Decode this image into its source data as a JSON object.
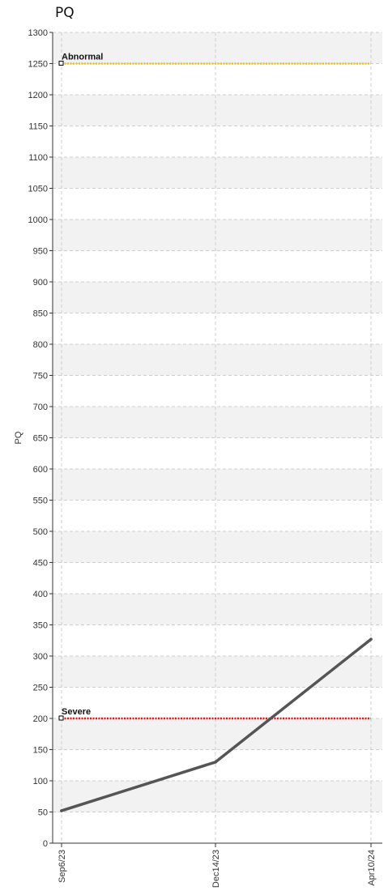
{
  "chart_data": {
    "type": "line",
    "title": "PQ",
    "ylabel": "PQ",
    "xlabel": "",
    "ylim": [
      0,
      1300
    ],
    "y_ticks": [
      0,
      50,
      100,
      150,
      200,
      250,
      300,
      350,
      400,
      450,
      500,
      550,
      600,
      650,
      700,
      750,
      800,
      850,
      900,
      950,
      1000,
      1050,
      1100,
      1150,
      1200,
      1250,
      1300
    ],
    "x": [
      "2023-09-06",
      "2023-12-14",
      "2024-04-10"
    ],
    "x_tick_labels": [
      "Sep6/23",
      "Dec14/23",
      "Apr10/24"
    ],
    "series": [
      {
        "values": [
          52,
          130,
          327
        ],
        "color": "#555555"
      }
    ],
    "reference_lines": [
      {
        "label": "Abnormal",
        "value": 1250,
        "color": "#f5c000"
      },
      {
        "label": "Severe",
        "value": 200,
        "color": "#ee1111"
      }
    ],
    "grid": true,
    "alternating_bands": true
  }
}
